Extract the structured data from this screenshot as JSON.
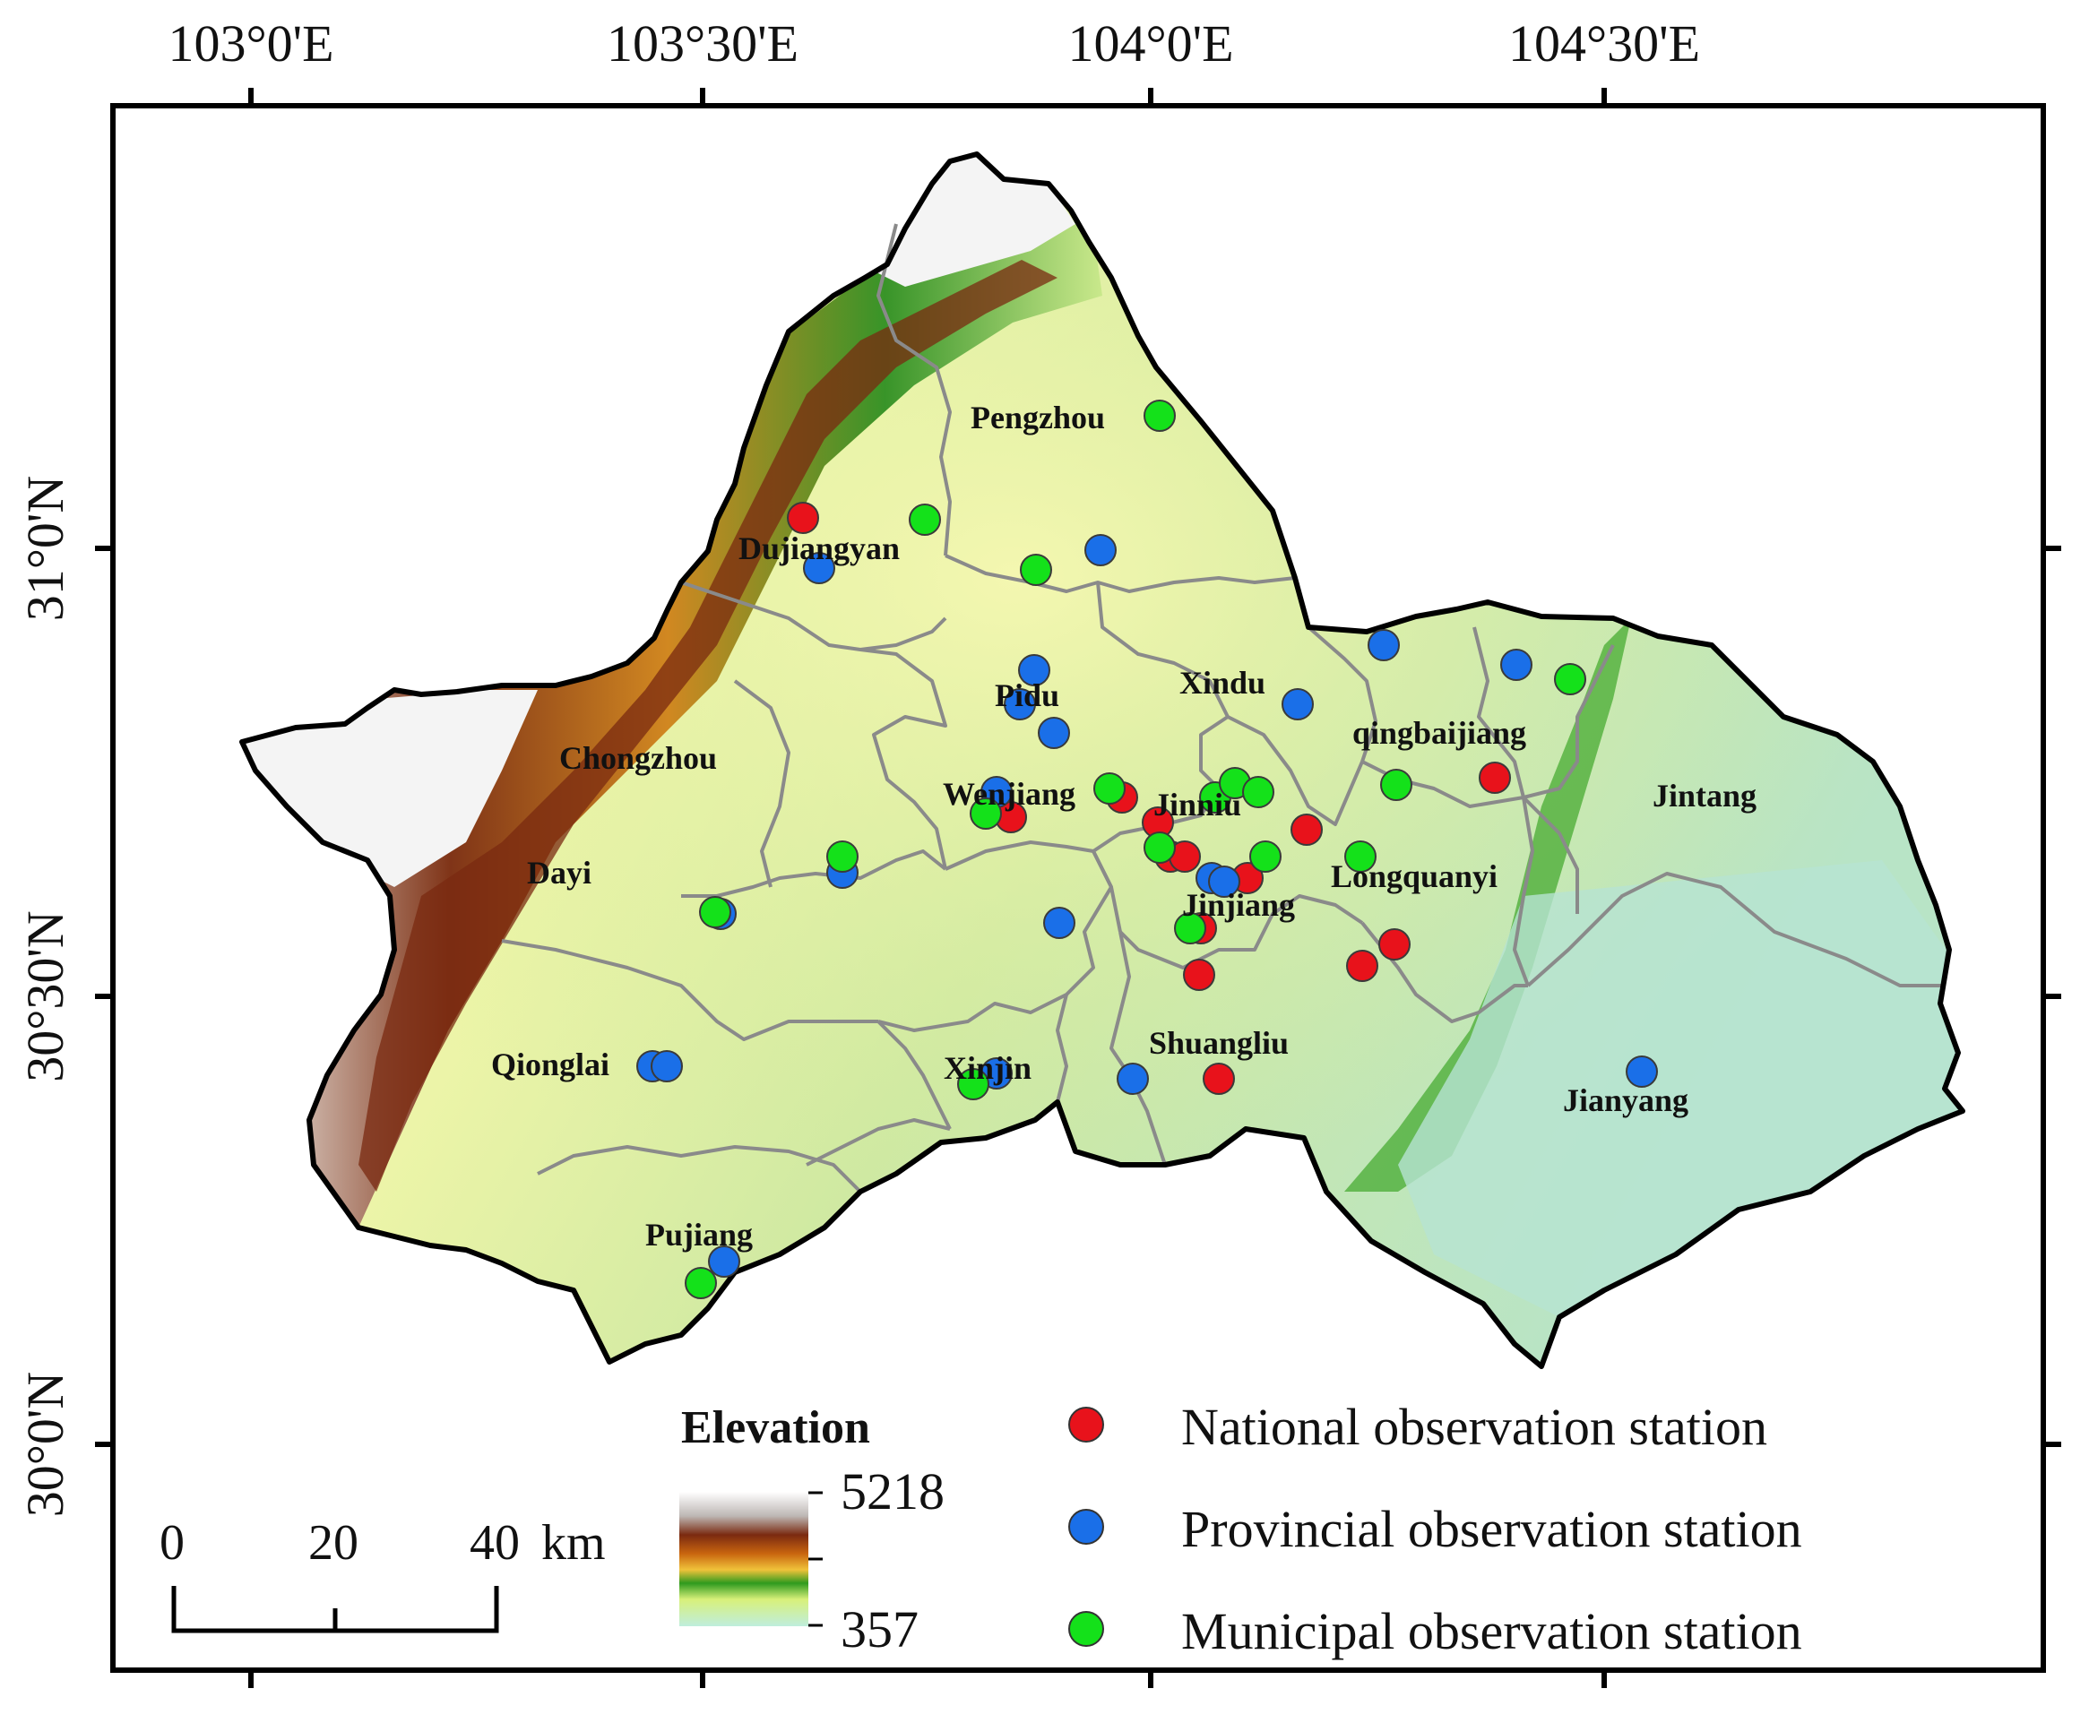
{
  "map": {
    "longitude_ticks": [
      "103°0'E",
      "103°30'E",
      "104°0'E",
      "104°30'E"
    ],
    "latitude_ticks": [
      "31°0'N",
      "30°30'N",
      "30°0'N"
    ]
  },
  "districts": [
    {
      "name": "Pengzhou"
    },
    {
      "name": "Dujiangyan"
    },
    {
      "name": "Pidu"
    },
    {
      "name": "Xindu"
    },
    {
      "name": "qingbaijiang"
    },
    {
      "name": "Chongzhou"
    },
    {
      "name": "Wenjiang"
    },
    {
      "name": "Jinniu"
    },
    {
      "name": "Jintang"
    },
    {
      "name": "Dayi"
    },
    {
      "name": "Longquanyi"
    },
    {
      "name": "Jinjiang"
    },
    {
      "name": "Qionglai"
    },
    {
      "name": "Xinjin"
    },
    {
      "name": "Shuangliu"
    },
    {
      "name": "Jianyang"
    },
    {
      "name": "Pujiang"
    }
  ],
  "legend": {
    "elevation_title": "Elevation",
    "elevation_max": "5218",
    "elevation_min": "357",
    "stations": [
      {
        "label": "National observation station",
        "color": "#e8121b"
      },
      {
        "label": "Provincial observation station",
        "color": "#1a6fe8"
      },
      {
        "label": "Municipal observation station",
        "color": "#14e11a"
      }
    ]
  },
  "scale_bar": {
    "labels": [
      "0",
      "20",
      "40"
    ],
    "unit": "km"
  },
  "colors": {
    "national": "#e8121b",
    "provincial": "#1a6fe8",
    "municipal": "#14e11a",
    "boundary": "#000000",
    "district_boundary": "#8a8a8a"
  }
}
